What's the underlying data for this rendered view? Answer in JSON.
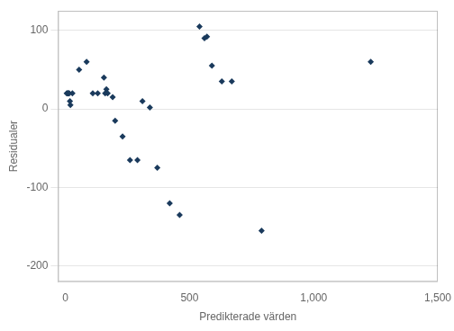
{
  "chart_data": {
    "type": "scatter",
    "x": [
      5,
      8,
      10,
      13,
      15,
      18,
      20,
      28,
      55,
      85,
      110,
      130,
      155,
      160,
      165,
      170,
      190,
      200,
      230,
      260,
      290,
      310,
      340,
      370,
      420,
      460,
      540,
      560,
      570,
      590,
      630,
      670,
      790,
      1230
    ],
    "values": [
      20,
      20,
      20,
      20,
      20,
      10,
      5,
      20,
      50,
      60,
      20,
      20,
      40,
      20,
      25,
      20,
      15,
      -15,
      -35,
      -65,
      -65,
      10,
      2,
      -75,
      -120,
      -135,
      105,
      90,
      92,
      55,
      35,
      35,
      -155,
      60
    ],
    "color": "#1a3a5c",
    "marker": "diamond",
    "xlabel": "Predikterade värden",
    "ylabel": "Residualer",
    "xlim": [
      -30,
      1500
    ],
    "ylim": [
      -220,
      125
    ],
    "xticks": [
      0,
      500,
      1000,
      1500
    ],
    "yticks": [
      -200,
      -100,
      0,
      100
    ],
    "grid": "y"
  }
}
